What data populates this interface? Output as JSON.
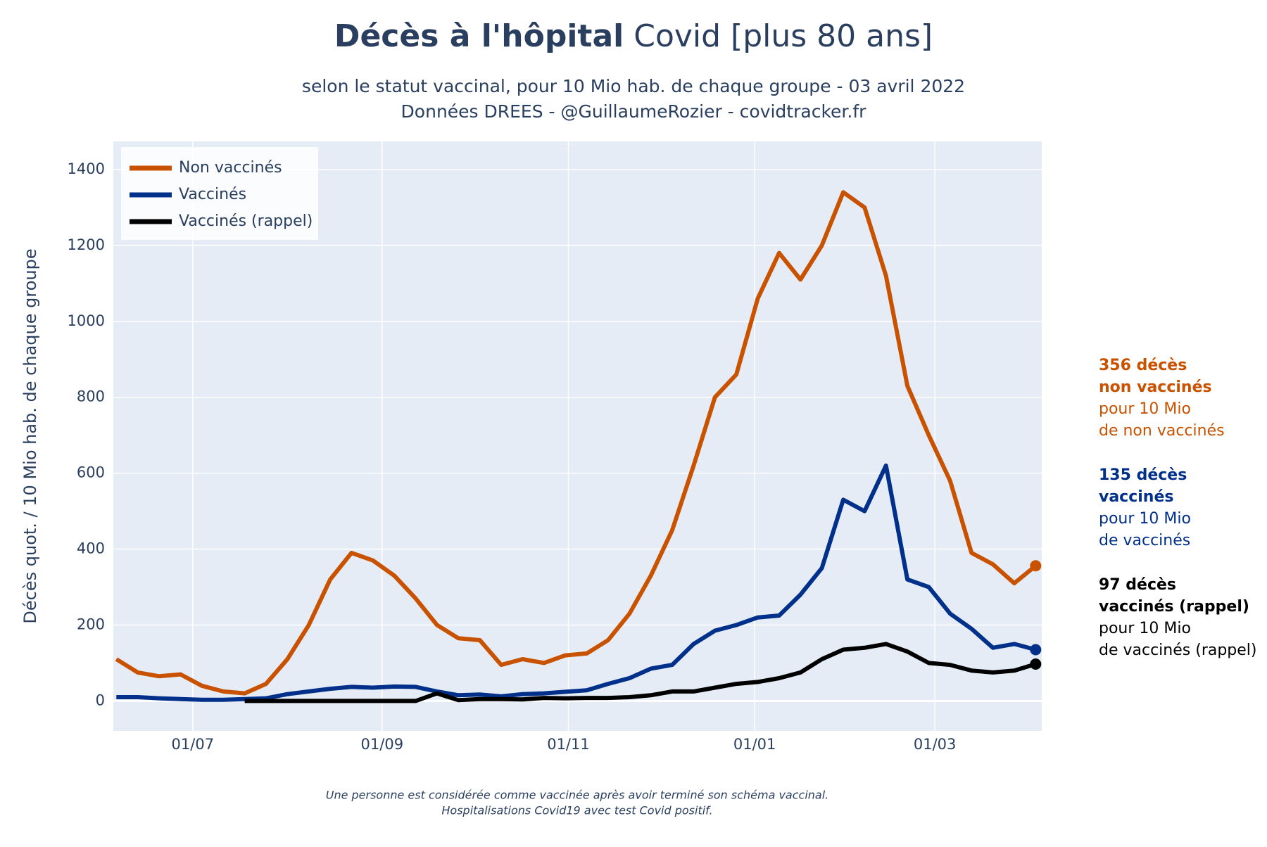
{
  "chart_data": {
    "type": "line",
    "title_bold": "Décès à l'hôpital",
    "title": "Covid [plus 80 ans]",
    "subtitle": [
      "selon le statut vaccinal, pour 10 Mio hab. de chaque groupe - 03 avril 2022",
      "Données DREES - @GuillaumeRozier - covidtracker.fr"
    ],
    "y_label": "Décès quot. / 10 Mio hab. de chaque groupe",
    "x": [
      "06/06",
      "13/06",
      "20/06",
      "27/06",
      "04/07",
      "11/07",
      "18/07",
      "25/07",
      "01/08",
      "08/08",
      "15/08",
      "22/08",
      "29/08",
      "05/09",
      "12/09",
      "19/09",
      "26/09",
      "03/10",
      "10/10",
      "17/10",
      "24/10",
      "31/10",
      "07/11",
      "14/11",
      "21/11",
      "28/11",
      "05/12",
      "12/12",
      "19/12",
      "26/12",
      "02/01",
      "09/01",
      "16/01",
      "23/01",
      "30/01",
      "06/02",
      "13/02",
      "20/02",
      "27/02",
      "06/03",
      "13/03",
      "20/03",
      "27/03",
      "03/04"
    ],
    "series": [
      {
        "name": "Non vaccinés",
        "color": "#c85200",
        "values": [
          110,
          75,
          65,
          70,
          40,
          25,
          20,
          45,
          110,
          200,
          320,
          390,
          370,
          330,
          270,
          200,
          165,
          160,
          95,
          110,
          100,
          120,
          125,
          160,
          230,
          330,
          450,
          620,
          800,
          860,
          1060,
          1180,
          1110,
          1200,
          1340,
          1300,
          1120,
          830,
          700,
          580,
          390,
          360,
          310,
          356
        ]
      },
      {
        "name": "Vaccinés",
        "color": "#00308a",
        "values": [
          10,
          10,
          7,
          5,
          3,
          3,
          5,
          7,
          18,
          25,
          32,
          37,
          35,
          38,
          37,
          25,
          15,
          17,
          12,
          18,
          20,
          24,
          28,
          45,
          60,
          85,
          95,
          150,
          185,
          200,
          220,
          225,
          280,
          350,
          530,
          500,
          620,
          320,
          300,
          230,
          190,
          140,
          150,
          135
        ]
      },
      {
        "name": "Vaccinés (rappel)",
        "color": "#000000",
        "values": [
          null,
          null,
          null,
          null,
          null,
          null,
          0,
          0,
          0,
          0,
          0,
          0,
          0,
          0,
          0,
          20,
          2,
          5,
          5,
          4,
          8,
          7,
          8,
          8,
          10,
          15,
          25,
          25,
          35,
          45,
          50,
          60,
          75,
          110,
          135,
          140,
          150,
          130,
          100,
          95,
          80,
          75,
          80,
          97
        ]
      }
    ],
    "ylim": [
      -79,
      1474
    ],
    "yticks": [
      0,
      200,
      400,
      600,
      800,
      1000,
      1200,
      1400
    ],
    "xticks": [
      "01/07",
      "01/09",
      "01/11",
      "01/01",
      "01/03"
    ],
    "grid": true,
    "legend": "upper left",
    "annotations": [
      {
        "bold": [
          "356 décès",
          "non vaccinés"
        ],
        "text": [
          "pour 10 Mio",
          "de non vaccinés"
        ],
        "color": "#c85200"
      },
      {
        "bold": [
          "135 décès",
          "vaccinés"
        ],
        "text": [
          "pour 10 Mio",
          "de vaccinés"
        ],
        "color": "#00308a"
      },
      {
        "bold": [
          "97 décès",
          "vaccinés (rappel)"
        ],
        "text": [
          "pour 10 Mio",
          "de vaccinés (rappel)"
        ],
        "color": "#000000"
      }
    ],
    "notes": [
      "Une personne est considérée comme vaccinée après avoir terminé son schéma vaccinal.",
      "Hospitalisations Covid19 avec test Covid positif."
    ]
  }
}
